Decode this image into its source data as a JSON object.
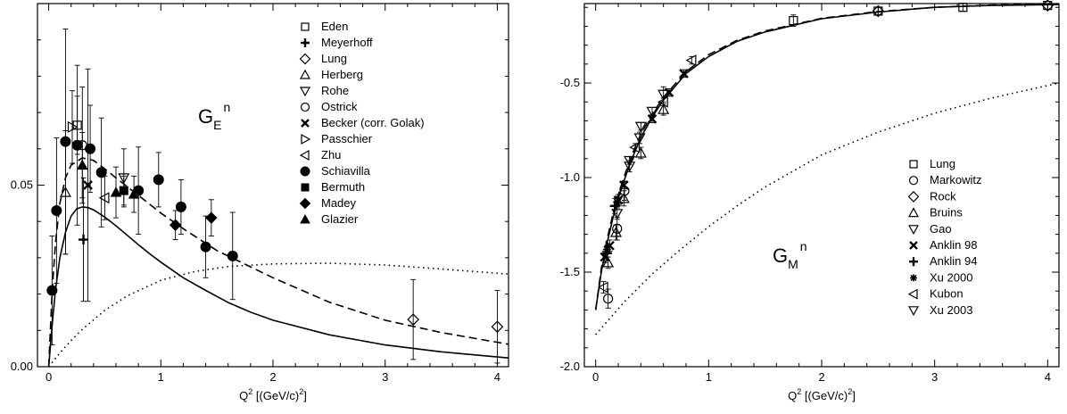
{
  "chart_data": [
    {
      "type": "scatter",
      "annotation": {
        "main": "G",
        "sub": "E",
        "sup": "n"
      },
      "xlabel": {
        "main": "Q",
        "sup": "2",
        "rest": " [(GeV/c)",
        "sup2": "2",
        "end": "]"
      },
      "xlim": [
        -0.1,
        4.1
      ],
      "ylim": [
        0.0,
        0.1
      ],
      "x_ticks": [
        0,
        1,
        2,
        3,
        4
      ],
      "y_ticks": [
        0.0,
        0.05
      ],
      "y_tick_labels": [
        "0.00",
        "0.05"
      ],
      "legend_position": "top-right",
      "series": [
        {
          "name": "Eden",
          "marker": "square-open",
          "points": [
            [
              0.255,
              0.0665,
              0.008
            ]
          ]
        },
        {
          "name": "Meyerhoff",
          "marker": "plus",
          "points": [
            [
              0.31,
              0.035,
              0.017
            ]
          ]
        },
        {
          "name": "Lung",
          "marker": "diamond-open",
          "points": [
            [
              3.25,
              0.013,
              0.011
            ],
            [
              4.0,
              0.011,
              0.01
            ]
          ]
        },
        {
          "name": "Herberg",
          "marker": "triangle-up-open",
          "points": [
            [
              0.15,
              0.048,
              0.017
            ]
          ]
        },
        {
          "name": "Rohe",
          "marker": "triangle-down-open",
          "points": [
            [
              0.67,
              0.052,
              0.008
            ]
          ]
        },
        {
          "name": "Ostrick",
          "marker": "circle-open",
          "points": [
            [
              0.3,
              0.061,
              0.016
            ]
          ]
        },
        {
          "name": "Becker (corr. Golak)",
          "marker": "cross",
          "points": [
            [
              0.35,
              0.05,
              0.032
            ]
          ]
        },
        {
          "name": "Passchier",
          "marker": "triangle-right-open",
          "points": [
            [
              0.21,
              0.066,
              0.01
            ]
          ]
        },
        {
          "name": "Zhu",
          "marker": "triangle-left-open",
          "points": [
            [
              0.5,
              0.0465,
              0.006
            ]
          ]
        },
        {
          "name": "Schiavilla",
          "marker": "circle-filled",
          "points": [
            [
              0.07,
              0.043,
              0.02
            ],
            [
              0.15,
              0.062,
              0.031
            ],
            [
              0.255,
              0.061,
              0.022
            ],
            [
              0.37,
              0.06,
              0.012
            ],
            [
              0.47,
              0.0535,
              0.015
            ],
            [
              0.8,
              0.0485,
              0.012
            ],
            [
              0.98,
              0.0515,
              0.0075
            ],
            [
              1.18,
              0.044,
              0.0075
            ],
            [
              1.4,
              0.033,
              0.0085
            ],
            [
              1.64,
              0.0305,
              0.012
            ],
            [
              0.03,
              0.021,
              0.015
            ]
          ]
        },
        {
          "name": "Bermuth",
          "marker": "square-filled",
          "points": [
            [
              0.67,
              0.0485,
              0.004
            ]
          ]
        },
        {
          "name": "Madey",
          "marker": "diamond-filled",
          "points": [
            [
              1.13,
              0.039,
              0.004
            ],
            [
              1.45,
              0.041,
              0.005
            ]
          ]
        },
        {
          "name": "Glazier",
          "marker": "triangle-up-filled",
          "points": [
            [
              0.3,
              0.0555,
              0.009
            ],
            [
              0.6,
              0.048,
              0.007
            ],
            [
              0.76,
              0.0475,
              0.005
            ]
          ]
        }
      ],
      "curves": [
        {
          "style": "solid",
          "x": [
            0.0,
            0.03,
            0.06,
            0.1,
            0.15,
            0.2,
            0.25,
            0.3,
            0.35,
            0.4,
            0.5,
            0.6,
            0.7,
            0.8,
            0.9,
            1.0,
            1.2,
            1.4,
            1.6,
            1.8,
            2.0,
            2.5,
            3.0,
            3.5,
            4.1
          ],
          "y": [
            0.0,
            0.011,
            0.021,
            0.03,
            0.037,
            0.0415,
            0.0435,
            0.044,
            0.0438,
            0.0432,
            0.0412,
            0.0388,
            0.0362,
            0.0336,
            0.0311,
            0.0288,
            0.0245,
            0.021,
            0.0177,
            0.015,
            0.0128,
            0.0088,
            0.006,
            0.0041,
            0.0024
          ]
        },
        {
          "style": "dashed",
          "x": [
            0.0,
            0.03,
            0.06,
            0.1,
            0.15,
            0.2,
            0.3,
            0.4,
            0.5,
            0.6,
            0.8,
            1.0,
            1.2,
            1.5,
            2.0,
            2.5,
            3.0,
            3.5,
            4.1
          ],
          "y": [
            0.0,
            0.02,
            0.034,
            0.045,
            0.052,
            0.0555,
            0.0575,
            0.0568,
            0.0545,
            0.052,
            0.0472,
            0.0423,
            0.038,
            0.032,
            0.0245,
            0.0178,
            0.0128,
            0.0094,
            0.0062
          ]
        },
        {
          "style": "dotted",
          "x": [
            0.0,
            0.1,
            0.2,
            0.3,
            0.5,
            0.7,
            1.0,
            1.3,
            1.6,
            2.0,
            2.5,
            3.0,
            3.5,
            4.1
          ],
          "y": [
            0.0,
            0.0038,
            0.0072,
            0.0103,
            0.0155,
            0.0195,
            0.0238,
            0.0262,
            0.0276,
            0.0283,
            0.0285,
            0.028,
            0.0269,
            0.0255
          ]
        }
      ]
    },
    {
      "type": "scatter",
      "annotation": {
        "main": "G",
        "sub": "M",
        "sup": "n"
      },
      "xlabel": {
        "main": "Q",
        "sup": "2",
        "rest": " [(GeV/c)",
        "sup2": "2",
        "end": "]"
      },
      "xlim": [
        -0.1,
        4.1
      ],
      "ylim": [
        -2.0,
        -0.08
      ],
      "x_ticks": [
        0,
        1,
        2,
        3,
        4
      ],
      "y_ticks": [
        -2.0,
        -1.5,
        -1.0,
        -0.5
      ],
      "y_tick_labels": [
        "-2.0",
        "-1.5",
        "-1.0",
        "-0.5"
      ],
      "legend_position": "right",
      "series": [
        {
          "name": "Lung",
          "marker": "square-open",
          "points": [
            [
              1.75,
              -0.17,
              0.03
            ],
            [
              2.5,
              -0.12,
              0.02
            ],
            [
              3.25,
              -0.1,
              0.02
            ],
            [
              4.0,
              -0.09,
              0.02
            ]
          ]
        },
        {
          "name": "Markowitz",
          "marker": "circle-open",
          "points": [
            [
              0.11,
              -1.64,
              0.05
            ],
            [
              0.19,
              -1.27,
              0.06
            ],
            [
              0.255,
              -1.07,
              0.05
            ]
          ]
        },
        {
          "name": "Rock",
          "marker": "diamond-open",
          "points": [
            [
              2.5,
              -0.12,
              0.02
            ],
            [
              4.0,
              -0.09,
              0.02
            ]
          ]
        },
        {
          "name": "Bruins",
          "marker": "triangle-up-open",
          "points": [
            [
              0.11,
              -1.45,
              0.03
            ],
            [
              0.18,
              -1.29,
              0.04
            ],
            [
              0.25,
              -1.11,
              0.04
            ],
            [
              0.4,
              -0.87,
              0.03
            ],
            [
              0.6,
              -0.64,
              0.03
            ]
          ]
        },
        {
          "name": "Gao",
          "marker": "triangle-down-open",
          "points": [
            [
              0.19,
              -1.19,
              0.03
            ],
            [
              0.3,
              -0.94,
              0.03
            ],
            [
              0.39,
              -0.79,
              0.03
            ],
            [
              0.6,
              -0.56,
              0.04
            ]
          ]
        },
        {
          "name": "Anklin 98",
          "marker": "cross",
          "points": [
            [
              0.08,
              -1.42,
              0.03
            ],
            [
              0.125,
              -1.36,
              0.03
            ],
            [
              0.2,
              -1.12,
              0.03
            ],
            [
              0.25,
              -1.04,
              0.02
            ],
            [
              0.5,
              -0.69,
              0.02
            ],
            [
              0.65,
              -0.55,
              0.02
            ],
            [
              0.78,
              -0.45,
              0.02
            ]
          ]
        },
        {
          "name": "Anklin 94",
          "marker": "plus",
          "points": [
            [
              0.1,
              -1.4,
              0.04
            ],
            [
              0.17,
              -1.15,
              0.04
            ]
          ]
        },
        {
          "name": "Xu 2000",
          "marker": "asterisk",
          "points": [
            [
              0.1,
              -1.38,
              0.02
            ],
            [
              0.19,
              -1.13,
              0.03
            ]
          ]
        },
        {
          "name": "Kubon",
          "marker": "triangle-left-open",
          "points": [
            [
              0.07,
              -1.58,
              0.03
            ],
            [
              0.35,
              -0.84,
              0.02
            ],
            [
              0.6,
              -0.6,
              0.02
            ],
            [
              0.85,
              -0.38,
              0.02
            ]
          ]
        },
        {
          "name": "Xu 2003",
          "marker": "triangle-down-open",
          "points": [
            [
              0.3,
              -0.91,
              0.02
            ],
            [
              0.4,
              -0.73,
              0.02
            ],
            [
              0.5,
              -0.65,
              0.02
            ]
          ]
        }
      ],
      "curves": [
        {
          "style": "solid",
          "x": [
            0.0,
            0.05,
            0.1,
            0.15,
            0.2,
            0.3,
            0.4,
            0.5,
            0.6,
            0.8,
            1.0,
            1.25,
            1.5,
            2.0,
            2.5,
            3.0,
            3.5,
            4.1
          ],
          "y": [
            -1.7,
            -1.5,
            -1.35,
            -1.22,
            -1.11,
            -0.93,
            -0.79,
            -0.68,
            -0.59,
            -0.45,
            -0.36,
            -0.28,
            -0.23,
            -0.16,
            -0.125,
            -0.1,
            -0.09,
            -0.085
          ]
        },
        {
          "style": "dashed",
          "x": [
            0.0,
            0.05,
            0.1,
            0.15,
            0.2,
            0.3,
            0.4,
            0.5,
            0.6,
            0.8,
            1.0,
            1.25,
            1.5,
            2.0,
            2.5,
            3.0,
            3.5,
            4.1
          ],
          "y": [
            -1.7,
            -1.48,
            -1.33,
            -1.2,
            -1.09,
            -0.91,
            -0.77,
            -0.665,
            -0.575,
            -0.44,
            -0.35,
            -0.275,
            -0.225,
            -0.158,
            -0.122,
            -0.1,
            -0.088,
            -0.082
          ]
        },
        {
          "style": "dotted",
          "x": [
            0.0,
            0.25,
            0.5,
            0.75,
            1.0,
            1.25,
            1.5,
            2.0,
            2.5,
            3.0,
            3.5,
            4.1
          ],
          "y": [
            -1.83,
            -1.66,
            -1.51,
            -1.38,
            -1.26,
            -1.15,
            -1.05,
            -0.88,
            -0.76,
            -0.66,
            -0.58,
            -0.5
          ]
        }
      ]
    }
  ]
}
